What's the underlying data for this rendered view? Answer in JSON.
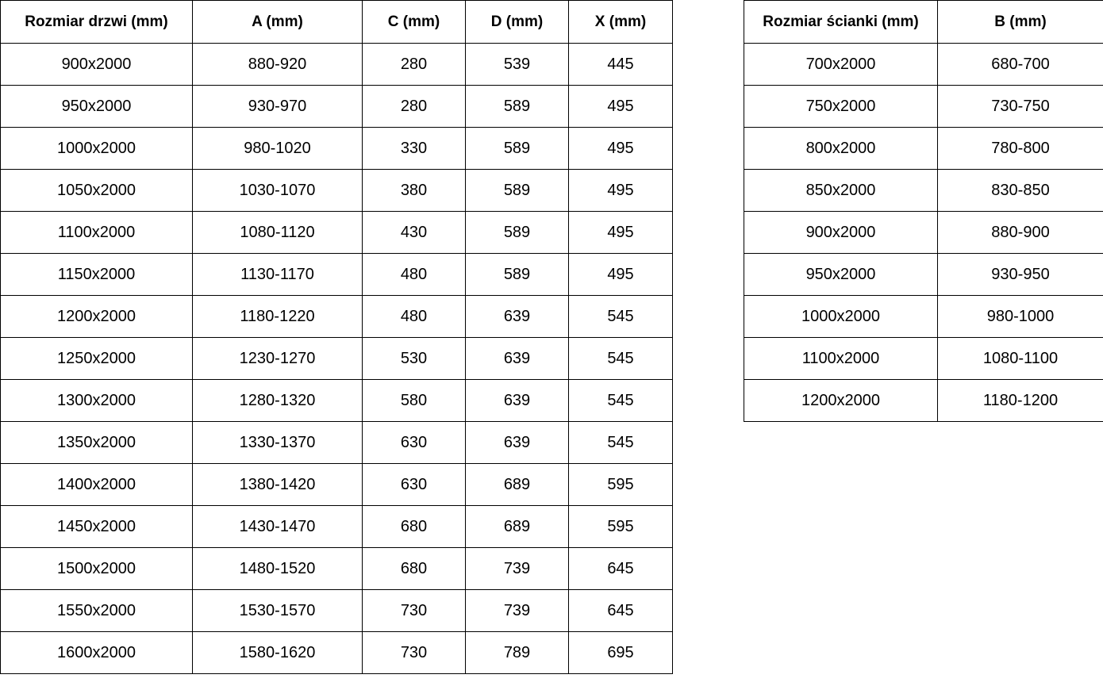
{
  "colors": {
    "border": "#000000",
    "text": "#000000",
    "background": "#ffffff"
  },
  "tables": [
    {
      "id": "door-table",
      "name": "door-size-table",
      "headers": [
        "Rozmiar drzwi (mm)",
        "A (mm)",
        "C (mm)",
        "D (mm)",
        "X (mm)"
      ],
      "rows": [
        [
          "900x2000",
          "880-920",
          "280",
          "539",
          "445"
        ],
        [
          "950x2000",
          "930-970",
          "280",
          "589",
          "495"
        ],
        [
          "1000x2000",
          "980-1020",
          "330",
          "589",
          "495"
        ],
        [
          "1050x2000",
          "1030-1070",
          "380",
          "589",
          "495"
        ],
        [
          "1100x2000",
          "1080-1120",
          "430",
          "589",
          "495"
        ],
        [
          "1150x2000",
          "1130-1170",
          "480",
          "589",
          "495"
        ],
        [
          "1200x2000",
          "1180-1220",
          "480",
          "639",
          "545"
        ],
        [
          "1250x2000",
          "1230-1270",
          "530",
          "639",
          "545"
        ],
        [
          "1300x2000",
          "1280-1320",
          "580",
          "639",
          "545"
        ],
        [
          "1350x2000",
          "1330-1370",
          "630",
          "639",
          "545"
        ],
        [
          "1400x2000",
          "1380-1420",
          "630",
          "689",
          "595"
        ],
        [
          "1450x2000",
          "1430-1470",
          "680",
          "689",
          "595"
        ],
        [
          "1500x2000",
          "1480-1520",
          "680",
          "739",
          "645"
        ],
        [
          "1550x2000",
          "1530-1570",
          "730",
          "739",
          "645"
        ],
        [
          "1600x2000",
          "1580-1620",
          "730",
          "789",
          "695"
        ]
      ]
    },
    {
      "id": "wall-table",
      "name": "wall-size-table",
      "headers": [
        "Rozmiar ścianki (mm)",
        "B (mm)"
      ],
      "rows": [
        [
          "700x2000",
          "680-700"
        ],
        [
          "750x2000",
          "730-750"
        ],
        [
          "800x2000",
          "780-800"
        ],
        [
          "850x2000",
          "830-850"
        ],
        [
          "900x2000",
          "880-900"
        ],
        [
          "950x2000",
          "930-950"
        ],
        [
          "1000x2000",
          "980-1000"
        ],
        [
          "1100x2000",
          "1080-1100"
        ],
        [
          "1200x2000",
          "1180-1200"
        ]
      ]
    }
  ]
}
